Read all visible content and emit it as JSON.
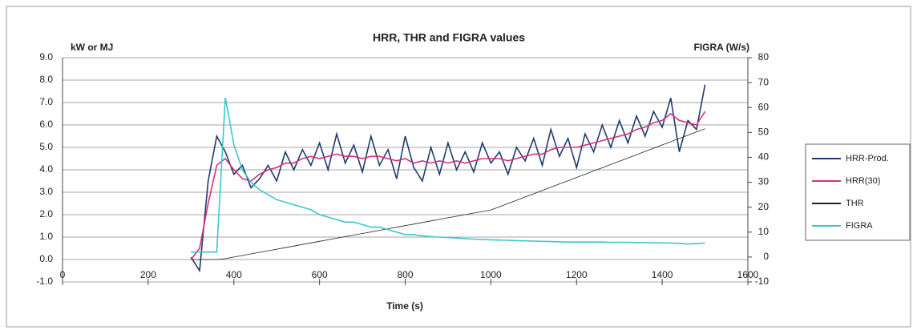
{
  "chart_data": {
    "type": "line",
    "title": "HRR, THR and FIGRA values",
    "y_label": "kW or MJ",
    "y2_label": "FIGRA (W/s)",
    "x_label": "Time (s)",
    "x": [
      300,
      320,
      340,
      360,
      380,
      400,
      420,
      440,
      460,
      480,
      500,
      520,
      540,
      560,
      580,
      600,
      620,
      640,
      660,
      680,
      700,
      720,
      740,
      760,
      780,
      800,
      820,
      840,
      860,
      880,
      900,
      920,
      940,
      960,
      980,
      1000,
      1020,
      1040,
      1060,
      1080,
      1100,
      1120,
      1140,
      1160,
      1180,
      1200,
      1220,
      1240,
      1260,
      1280,
      1300,
      1320,
      1340,
      1360,
      1380,
      1400,
      1420,
      1440,
      1460,
      1480,
      1500
    ],
    "series": [
      {
        "name": "HRR-Prod.",
        "color": "#1f3a6e",
        "values": [
          0.1,
          -0.5,
          3.5,
          5.5,
          4.8,
          3.8,
          4.2,
          3.2,
          3.6,
          4.2,
          3.5,
          4.8,
          4.0,
          4.9,
          4.2,
          5.2,
          4.0,
          5.6,
          4.3,
          5.1,
          3.9,
          5.5,
          4.2,
          4.9,
          3.6,
          5.5,
          4.1,
          3.5,
          5.0,
          3.8,
          5.2,
          4.0,
          4.8,
          3.9,
          5.2,
          4.3,
          4.8,
          3.8,
          5.0,
          4.4,
          5.4,
          4.2,
          5.8,
          4.6,
          5.4,
          4.1,
          5.6,
          4.8,
          6.0,
          5.0,
          6.2,
          5.2,
          6.4,
          5.5,
          6.6,
          5.9,
          7.2,
          4.8,
          6.2,
          5.8,
          7.8
        ]
      },
      {
        "name": "HRR(30)",
        "color": "#d6307a",
        "values": [
          0,
          0.5,
          2.5,
          4.2,
          4.5,
          4.0,
          3.6,
          3.5,
          3.8,
          4.0,
          4.1,
          4.3,
          4.3,
          4.5,
          4.6,
          4.5,
          4.6,
          4.7,
          4.6,
          4.6,
          4.5,
          4.6,
          4.6,
          4.5,
          4.4,
          4.5,
          4.3,
          4.4,
          4.3,
          4.4,
          4.3,
          4.4,
          4.3,
          4.4,
          4.5,
          4.5,
          4.5,
          4.4,
          4.5,
          4.6,
          4.7,
          4.7,
          4.9,
          5.0,
          5.0,
          5.0,
          5.1,
          5.2,
          5.3,
          5.4,
          5.5,
          5.6,
          5.8,
          5.9,
          6.1,
          6.2,
          6.5,
          6.2,
          6.1,
          6.0,
          6.6
        ]
      },
      {
        "name": "THR",
        "color": "#222222",
        "values": [
          0,
          0,
          0,
          0,
          0.04,
          0.11,
          0.18,
          0.25,
          0.32,
          0.39,
          0.46,
          0.53,
          0.6,
          0.67,
          0.74,
          0.81,
          0.88,
          0.95,
          1.02,
          1.09,
          1.16,
          1.23,
          1.3,
          1.37,
          1.44,
          1.51,
          1.58,
          1.65,
          1.72,
          1.79,
          1.86,
          1.93,
          2.0,
          2.07,
          2.14,
          2.21,
          2.35,
          2.5,
          2.64,
          2.79,
          2.93,
          3.08,
          3.22,
          3.37,
          3.51,
          3.66,
          3.8,
          3.95,
          4.09,
          4.24,
          4.38,
          4.53,
          4.67,
          4.82,
          4.96,
          5.11,
          5.25,
          5.4,
          5.54,
          5.69,
          5.83
        ]
      },
      {
        "name": "FIGRA",
        "color": "#3cc6d0",
        "axis": "y2",
        "values": [
          2,
          2,
          2,
          2,
          64,
          45,
          35,
          30,
          27,
          25,
          23,
          22,
          21,
          20,
          19,
          17,
          16,
          15,
          14,
          14,
          13,
          12,
          12,
          11,
          10,
          9,
          9,
          8.5,
          8.2,
          8,
          7.8,
          7.6,
          7.4,
          7.2,
          7,
          6.9,
          6.8,
          6.7,
          6.6,
          6.5,
          6.4,
          6.3,
          6.2,
          6.1,
          6,
          6,
          6,
          6,
          6,
          5.9,
          5.9,
          5.9,
          5.8,
          5.8,
          5.7,
          5.7,
          5.6,
          5.5,
          5.2,
          5.4,
          5.6
        ]
      }
    ],
    "xlim": [
      0,
      1600
    ],
    "xticks": [
      0,
      200,
      400,
      600,
      800,
      1000,
      1200,
      1400,
      1600
    ],
    "ylim": [
      -1,
      9
    ],
    "yticks": [
      {
        "value": -1,
        "label": "-1.0"
      },
      {
        "value": 0,
        "label": "0.0"
      },
      {
        "value": 1,
        "label": "1.0"
      },
      {
        "value": 2,
        "label": "2.0"
      },
      {
        "value": 3,
        "label": "3.0"
      },
      {
        "value": 4,
        "label": "4.0"
      },
      {
        "value": 5,
        "label": "5.0"
      },
      {
        "value": 6,
        "label": "6.0"
      },
      {
        "value": 7,
        "label": "7.0"
      },
      {
        "value": 8,
        "label": "8.0"
      },
      {
        "value": 9,
        "label": "9.0"
      }
    ],
    "y2lim": [
      -10,
      80
    ],
    "y2ticks": [
      -10,
      0,
      10,
      20,
      30,
      40,
      50,
      60,
      70,
      80
    ],
    "grid": true,
    "legend": "right"
  }
}
